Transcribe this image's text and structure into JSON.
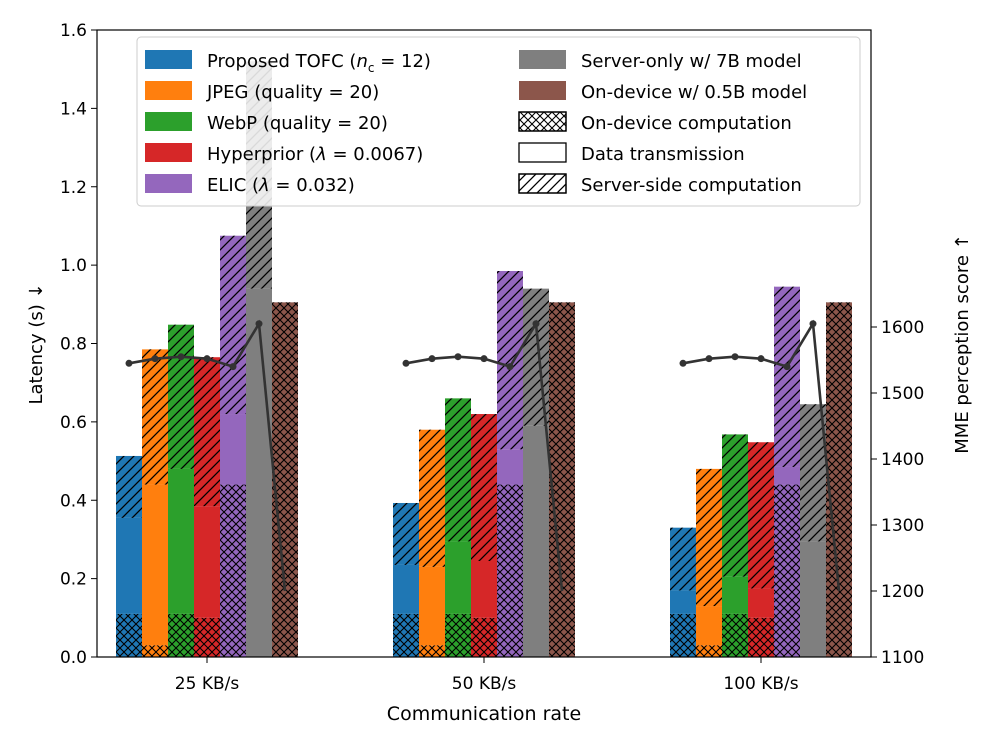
{
  "chart_data": {
    "type": "bar",
    "xlabel": "Communication rate",
    "ylabel_left": "Latency (s) ↓",
    "ylabel_right": "MME perception score ↑",
    "categories": [
      "25 KB/s",
      "50 KB/s",
      "100 KB/s"
    ],
    "ylim_left": [
      0,
      1.6
    ],
    "ylim_right": [
      1100,
      2050
    ],
    "left_ticks": [
      "0.0",
      "0.2",
      "0.4",
      "0.6",
      "0.8",
      "1.0",
      "1.2",
      "1.4",
      "1.6"
    ],
    "right_ticks": [
      "1100",
      "1200",
      "1300",
      "1400",
      "1500",
      "1600"
    ],
    "right_tick_values": [
      1100,
      1200,
      1300,
      1400,
      1500,
      1600
    ],
    "methods": [
      {
        "name": "Proposed TOFC",
        "legend_html": "Proposed TOFC (<tspan font-style='italic'>n</tspan><tspan class='sup' dy='5'>c</tspan><tspan dy='-5'> = 12)</tspan>",
        "color": "#1f77b4",
        "segments": [
          [
            0.11,
            0.245,
            0.158
          ],
          [
            0.11,
            0.125,
            0.158
          ],
          [
            0.11,
            0.06,
            0.16
          ]
        ]
      },
      {
        "name": "JPEG (quality = 20)",
        "color": "#ff7f0e",
        "segments": [
          [
            0.03,
            0.41,
            0.345
          ],
          [
            0.03,
            0.2,
            0.35
          ],
          [
            0.03,
            0.1,
            0.35
          ]
        ]
      },
      {
        "name": "WebP (quality = 20)",
        "color": "#2ca02c",
        "segments": [
          [
            0.11,
            0.37,
            0.368
          ],
          [
            0.11,
            0.185,
            0.365
          ],
          [
            0.11,
            0.095,
            0.363
          ]
        ]
      },
      {
        "name": "Hyperprior (λ = 0.0067)",
        "legend_html": "Hyperprior (<tspan font-style='italic'>λ</tspan> = 0.0067)",
        "color": "#d62728",
        "segments": [
          [
            0.1,
            0.285,
            0.38
          ],
          [
            0.1,
            0.145,
            0.375
          ],
          [
            0.1,
            0.075,
            0.373
          ]
        ]
      },
      {
        "name": "ELIC (λ = 0.032)",
        "legend_html": "ELIC (<tspan font-style='italic'>λ</tspan> = 0.032)",
        "color": "#9467bd",
        "segments": [
          [
            0.44,
            0.18,
            0.455
          ],
          [
            0.44,
            0.09,
            0.455
          ],
          [
            0.44,
            0.045,
            0.46
          ]
        ]
      },
      {
        "name": "Server-only w/ 7B model",
        "color": "#7f7f7f",
        "segments": [
          [
            0,
            0.94,
            0.58
          ],
          [
            0,
            0.59,
            0.35
          ],
          [
            0,
            0.295,
            0.35
          ]
        ]
      },
      {
        "name": "On-device w/ 0.5B model",
        "color": "#8c564b",
        "segments": [
          [
            0.905,
            0,
            0
          ],
          [
            0.905,
            0,
            0
          ],
          [
            0.905,
            0,
            0
          ]
        ]
      }
    ],
    "scores": [
      1545,
      1552,
      1555,
      1552,
      1540,
      1605,
      1200
    ],
    "legend_hatch": [
      "On-device computation",
      "Data transmission",
      "Server-side computation"
    ]
  }
}
